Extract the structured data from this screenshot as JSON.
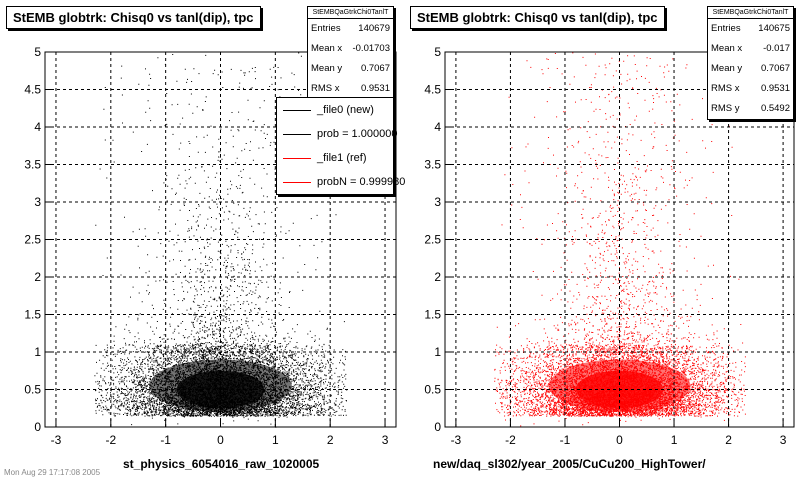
{
  "chart_data": [
    {
      "type": "scatter",
      "title": "StEMB globtrk: Chisq0 vs tanl(dip), tpc",
      "xlabel": "st_physics_6054016_raw_1020005",
      "ylabel": "",
      "xlim": [
        -3.2,
        3.2
      ],
      "ylim": [
        0,
        5
      ],
      "x_ticks": [
        "-3",
        "-2",
        "-1",
        "0",
        "1",
        "2",
        "3"
      ],
      "y_ticks": [
        "0",
        "0.5",
        "1",
        "1.5",
        "2",
        "2.5",
        "3",
        "3.5",
        "4",
        "4.5",
        "5"
      ],
      "grid": true,
      "marker_color": "#000000",
      "stats": {
        "name": "StEMBQaGtrkChi0TanlT",
        "entries_label": "Entries",
        "entries": "140679",
        "meanx_label": "Mean x",
        "meanx": "-0.01703",
        "meany_label": "Mean y",
        "meany": "0.7067",
        "rmsx_label": "RMS x",
        "rmsx": "0.9531"
      },
      "legend": {
        "placement": "top-right",
        "entries": [
          {
            "label": "_file0 (new)",
            "color": "#000000"
          },
          {
            "label": "prob = 1.000000",
            "color": "#000000"
          },
          {
            "label": "_file1 (ref)",
            "color": "#ff0000"
          },
          {
            "label": "probN = 0.999980",
            "color": "#ff0000"
          }
        ]
      }
    },
    {
      "type": "scatter",
      "title": "StEMB globtrk: Chisq0 vs tanl(dip), tpc",
      "xlabel": "new/daq_sl302/year_2005/CuCu200_HighTower/",
      "ylabel": "",
      "xlim": [
        -3.2,
        3.2
      ],
      "ylim": [
        0,
        5
      ],
      "x_ticks": [
        "-3",
        "-2",
        "-1",
        "0",
        "1",
        "2",
        "3"
      ],
      "y_ticks": [
        "0",
        "0.5",
        "1",
        "1.5",
        "2",
        "2.5",
        "3",
        "3.5",
        "4",
        "4.5",
        "5"
      ],
      "grid": true,
      "marker_color": "#ff0000",
      "stats": {
        "name": "StEMBQaGtrkChi0TanlT",
        "entries_label": "Entries",
        "entries": "140675",
        "meanx_label": "Mean x",
        "meanx": "-0.017",
        "meany_label": "Mean y",
        "meany": "0.7067",
        "rmsx_label": "RMS x",
        "rmsx": "0.9531",
        "rmsy_label": "RMS y",
        "rmsy": "0.5492"
      }
    }
  ],
  "footnote": "Mon Aug 29 17:17:08 2005"
}
